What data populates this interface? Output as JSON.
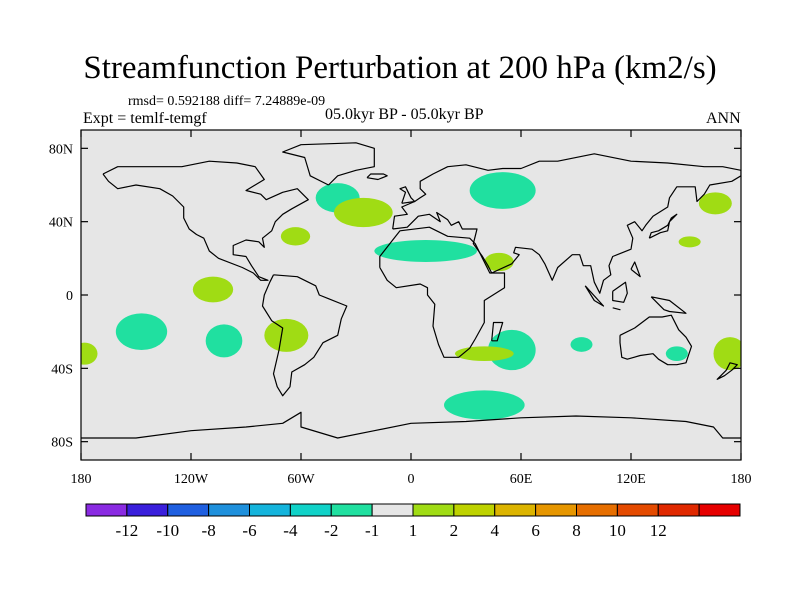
{
  "title": "Streamfunction Perturbation at 200 hPa (km2/s)",
  "stats": "rmsd= 0.592188 diff= 7.24889e-09",
  "experiment": "Expt = temlf-temgf",
  "period": "05.0kyr BP - 05.0kyr BP",
  "season": "ANN",
  "map": {
    "lon_range": [
      -180,
      180
    ],
    "lat_range": [
      -90,
      90
    ],
    "background_color": "#e6e6e6",
    "coastline_color": "#000000",
    "y_ticks": [
      {
        "lat": 80,
        "label": "80N"
      },
      {
        "lat": 40,
        "label": "40N"
      },
      {
        "lat": 0,
        "label": "0"
      },
      {
        "lat": -40,
        "label": "40S"
      },
      {
        "lat": -80,
        "label": "80S"
      }
    ],
    "x_ticks": [
      {
        "lon": -180,
        "label": "180"
      },
      {
        "lon": -120,
        "label": "120W"
      },
      {
        "lon": -60,
        "label": "60W"
      },
      {
        "lon": 0,
        "label": "0"
      },
      {
        "lon": 60,
        "label": "60E"
      },
      {
        "lon": 120,
        "label": "120E"
      },
      {
        "lon": 180,
        "label": "180"
      }
    ],
    "anomalies": [
      {
        "lon": -40,
        "lat": 53,
        "rlon": 12,
        "rlat": 8,
        "level": "-2"
      },
      {
        "lon": -63,
        "lat": 32,
        "rlon": 8,
        "rlat": 5,
        "level": "2"
      },
      {
        "lon": -26,
        "lat": 45,
        "rlon": 16,
        "rlat": 8,
        "level": "2"
      },
      {
        "lon": 50,
        "lat": 57,
        "rlon": 18,
        "rlat": 10,
        "level": "-2"
      },
      {
        "lon": 8,
        "lat": 24,
        "rlon": 28,
        "rlat": 6,
        "level": "-2"
      },
      {
        "lon": 48,
        "lat": 18,
        "rlon": 8,
        "rlat": 5,
        "level": "2"
      },
      {
        "lon": 166,
        "lat": 50,
        "rlon": 9,
        "rlat": 6,
        "level": "2"
      },
      {
        "lon": 152,
        "lat": 29,
        "rlon": 6,
        "rlat": 3,
        "level": "2"
      },
      {
        "lon": -108,
        "lat": 3,
        "rlon": 11,
        "rlat": 7,
        "level": "2"
      },
      {
        "lon": -147,
        "lat": -20,
        "rlon": 14,
        "rlat": 10,
        "level": "-2"
      },
      {
        "lon": -102,
        "lat": -25,
        "rlon": 10,
        "rlat": 9,
        "level": "-2"
      },
      {
        "lon": -68,
        "lat": -22,
        "rlon": 12,
        "rlat": 9,
        "level": "2"
      },
      {
        "lon": -178,
        "lat": -32,
        "rlon": 7,
        "rlat": 6,
        "level": "2"
      },
      {
        "lon": 55,
        "lat": -30,
        "rlon": 13,
        "rlat": 11,
        "level": "-2"
      },
      {
        "lon": 40,
        "lat": -32,
        "rlon": 16,
        "rlat": 4,
        "level": "2"
      },
      {
        "lon": 93,
        "lat": -27,
        "rlon": 6,
        "rlat": 4,
        "level": "-2"
      },
      {
        "lon": 145,
        "lat": -32,
        "rlon": 6,
        "rlat": 4,
        "level": "-2"
      },
      {
        "lon": 174,
        "lat": -32,
        "rlon": 9,
        "rlat": 9,
        "level": "2"
      },
      {
        "lon": 40,
        "lat": -60,
        "rlon": 22,
        "rlat": 8,
        "level": "-2"
      }
    ]
  },
  "colorbar": {
    "colors": [
      "#8a2be2",
      "#3a1fdc",
      "#1f5fe0",
      "#1e90dc",
      "#14b4dc",
      "#10d2c8",
      "#20e0a0",
      "#e6e6e6",
      "#a0dc14",
      "#bed200",
      "#dcb400",
      "#e69600",
      "#e66e00",
      "#e44a00",
      "#e02800",
      "#e60000"
    ],
    "labels": [
      "-12",
      "-10",
      "-8",
      "-6",
      "-4",
      "-2",
      "-1",
      "1",
      "2",
      "4",
      "6",
      "8",
      "10",
      "12"
    ]
  },
  "fill_colors": {
    "-2": "#20e0a0",
    "2": "#a0dc14"
  }
}
